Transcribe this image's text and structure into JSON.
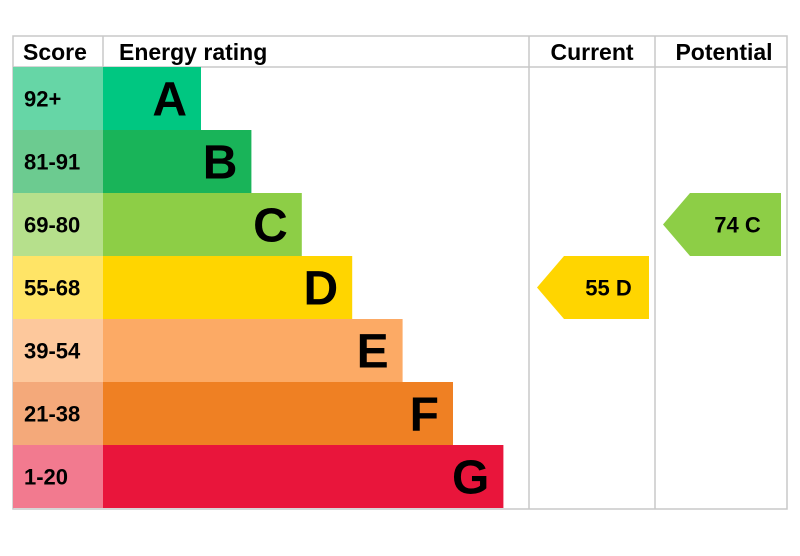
{
  "headers": {
    "score": "Score",
    "energy_rating": "Energy rating",
    "current": "Current",
    "potential": "Potential"
  },
  "chart_data": {
    "type": "bar",
    "bands": [
      {
        "letter": "A",
        "score": "92+",
        "min": 92,
        "max": 100,
        "color": "#00c781",
        "score_bg": "#66d6a6"
      },
      {
        "letter": "B",
        "score": "81-91",
        "min": 81,
        "max": 91,
        "color": "#19b459",
        "score_bg": "#6ccb90"
      },
      {
        "letter": "C",
        "score": "69-80",
        "min": 69,
        "max": 80,
        "color": "#8dce46",
        "score_bg": "#b6e08c"
      },
      {
        "letter": "D",
        "score": "55-68",
        "min": 55,
        "max": 68,
        "color": "#ffd500",
        "score_bg": "#ffe466"
      },
      {
        "letter": "E",
        "score": "39-54",
        "min": 39,
        "max": 54,
        "color": "#fcaa65",
        "score_bg": "#fdc89c"
      },
      {
        "letter": "F",
        "score": "21-38",
        "min": 21,
        "max": 38,
        "color": "#ef8023",
        "score_bg": "#f4a97a"
      },
      {
        "letter": "G",
        "score": "1-20",
        "min": 1,
        "max": 20,
        "color": "#e9153b",
        "score_bg": "#f27a8f"
      }
    ],
    "current": {
      "value": 55,
      "letter": "D",
      "label": "55 D",
      "color": "#ffd500"
    },
    "potential": {
      "value": 74,
      "letter": "C",
      "label": "74 C",
      "color": "#8dce46"
    }
  }
}
